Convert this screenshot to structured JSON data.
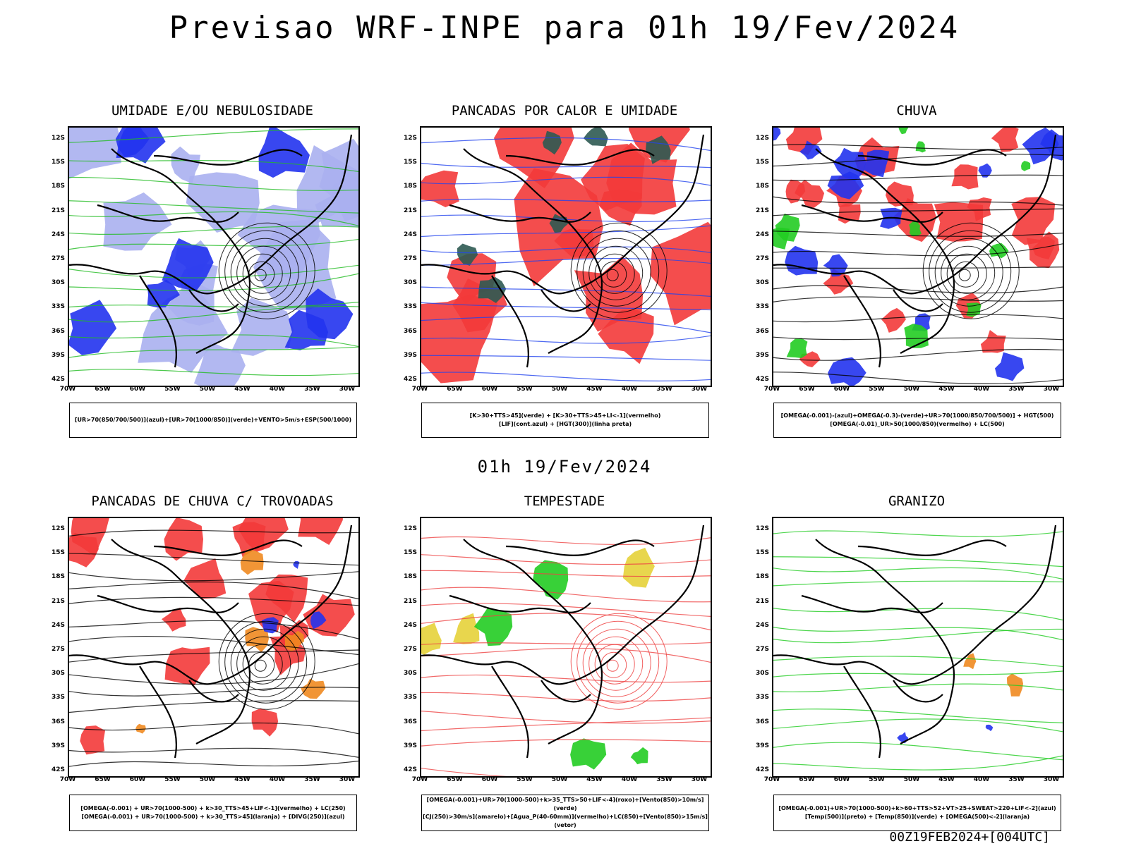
{
  "title": "Previsao WRF-INPE  para 01h 19/Fev/2024",
  "mid_date": "01h 19/Fev/2024",
  "footer": "00Z19FEB2024+[004UTC]",
  "lat_labels": [
    "12S",
    "15S",
    "18S",
    "21S",
    "24S",
    "27S",
    "30S",
    "33S",
    "36S",
    "39S",
    "42S"
  ],
  "lon_labels": [
    "70W",
    "65W",
    "60W",
    "55W",
    "50W",
    "45W",
    "40W",
    "35W",
    "30W"
  ],
  "colors": {
    "red": "#f33a3a",
    "green": "#22cc22",
    "blue": "#2233ee",
    "lavender": "#aab0f0",
    "darkgreen": "#2d5a52",
    "yellow": "#e6d23a",
    "orange": "#f08a20"
  },
  "panels": [
    {
      "title": "UMIDADE E/OU NEBULOSIDADE",
      "legend": [
        "[UR>70(850/700/500)](azul)+[UR>70(1000/850)](verde)+VENTO>5m/s+ESP(500/1000)"
      ]
    },
    {
      "title": "PANCADAS POR CALOR E UMIDADE",
      "legend": [
        "[K>30+TTS>45](verde) + [K>30+TTS>45+LI<-1](vermelho)",
        "[LIF](cont.azul) + [HGT(300)](linha preta)"
      ]
    },
    {
      "title": "CHUVA",
      "legend": [
        "[OMEGA(-0.001)-(azul)+OMEGA(-0.3)-(verde)+UR>70(1000/850/700/500)] + HGT(500)",
        "[OMEGA(-0.01)_UR>50(1000/850)(vermelho) + LC(500)"
      ]
    },
    {
      "title": "PANCADAS DE CHUVA C/ TROVOADAS",
      "legend": [
        "[OMEGA(-0.001) + UR>70(1000-500) + k>30_TTS>45+LIF<-1](vermelho) + LC(250)",
        "[OMEGA(-0.001) + UR>70(1000-500) + k>30_TTS>45](laranja) + [DIVG(250)](azul)"
      ]
    },
    {
      "title": "TEMPESTADE",
      "legend": [
        "[OMEGA(-0.001)+UR>70(1000-500)+k>35_TTS>50+LIF<-4](roxo)+[Vento(850)>10m/s](verde)",
        "[CJ(250)>30m/s](amarelo)+[Agua_P(40-60mm)](vermelho)+LC(850)+[Vento(850)>15m/s](vetor)"
      ]
    },
    {
      "title": "GRANIZO",
      "legend": [
        "[OMEGA(-0.001)+UR>70(1000-500)+k>60+TTS>52+VT>25+SWEAT>220+LIF<-2](azul)",
        "[Temp(500)](preto) + [Temp(850)](verde) + [OMEGA(500)<-2](laranja)"
      ]
    }
  ]
}
